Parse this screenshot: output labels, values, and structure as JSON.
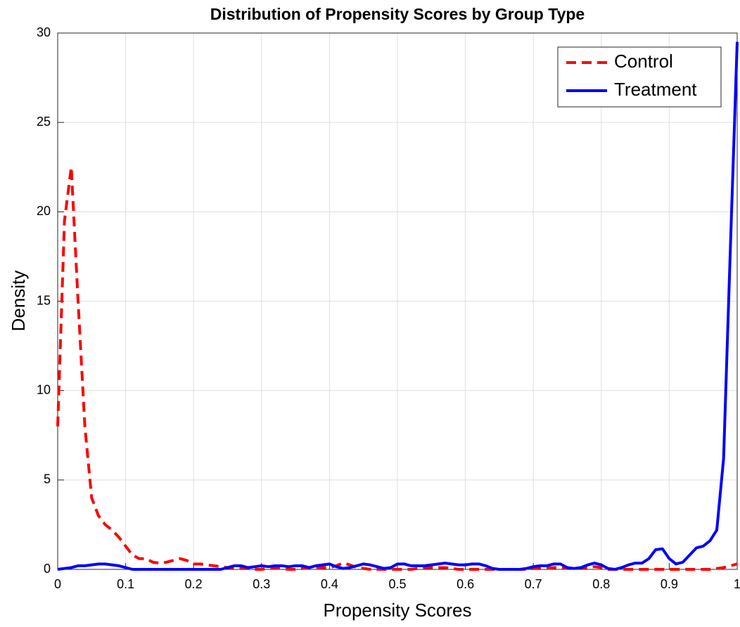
{
  "chart_data": {
    "type": "line",
    "title": "Distribution of Propensity Scores by Group Type",
    "xlabel": "Propensity Scores",
    "ylabel": "Density",
    "x": [
      0,
      0.01,
      0.02,
      0.03,
      0.04,
      0.05,
      0.06,
      0.07,
      0.08,
      0.09,
      0.1,
      0.11,
      0.12,
      0.13,
      0.14,
      0.15,
      0.16,
      0.17,
      0.18,
      0.19,
      0.2,
      0.21,
      0.22,
      0.23,
      0.24,
      0.25,
      0.26,
      0.27,
      0.28,
      0.29,
      0.3,
      0.31,
      0.32,
      0.33,
      0.34,
      0.35,
      0.36,
      0.37,
      0.38,
      0.39,
      0.4,
      0.41,
      0.42,
      0.43,
      0.44,
      0.45,
      0.46,
      0.47,
      0.48,
      0.49,
      0.5,
      0.51,
      0.52,
      0.53,
      0.54,
      0.55,
      0.56,
      0.57,
      0.58,
      0.59,
      0.6,
      0.61,
      0.62,
      0.63,
      0.64,
      0.65,
      0.66,
      0.67,
      0.68,
      0.69,
      0.7,
      0.71,
      0.72,
      0.73,
      0.74,
      0.75,
      0.76,
      0.77,
      0.78,
      0.79,
      0.8,
      0.81,
      0.82,
      0.83,
      0.84,
      0.85,
      0.86,
      0.87,
      0.88,
      0.89,
      0.9,
      0.91,
      0.92,
      0.93,
      0.94,
      0.95,
      0.96,
      0.97,
      0.98,
      0.99,
      1
    ],
    "series": [
      {
        "name": "Control",
        "color": "#ff0000",
        "dash": true,
        "values": [
          8,
          19.5,
          22.5,
          15,
          8,
          4,
          3,
          2.5,
          2.2,
          1.8,
          1.3,
          0.8,
          0.6,
          0.6,
          0.4,
          0.35,
          0.4,
          0.5,
          0.6,
          0.5,
          0.3,
          0.3,
          0.25,
          0.2,
          0.15,
          0.1,
          0.1,
          0.05,
          0.05,
          0,
          0,
          0.05,
          0.1,
          0.05,
          0,
          0,
          0.05,
          0.1,
          0.05,
          0.1,
          0.1,
          0.2,
          0.35,
          0.25,
          0.1,
          0.05,
          0,
          0,
          0,
          0,
          0,
          0,
          0,
          0.05,
          0.1,
          0.1,
          0.1,
          0.1,
          0.05,
          0,
          0,
          0,
          0,
          0,
          0,
          0,
          0,
          0,
          0,
          0,
          0.05,
          0.05,
          0.05,
          0.1,
          0.1,
          0.05,
          0.05,
          0.1,
          0.1,
          0.15,
          0.1,
          0,
          0,
          0,
          0,
          0,
          0,
          0,
          0,
          0,
          0,
          0,
          0,
          0,
          0,
          0,
          0,
          0.05,
          0.1,
          0.2,
          0.3
        ]
      },
      {
        "name": "Treatment",
        "color": "#0000ff",
        "dash": false,
        "values": [
          0,
          0.05,
          0.1,
          0.2,
          0.2,
          0.25,
          0.3,
          0.3,
          0.25,
          0.2,
          0.1,
          0,
          0,
          0,
          0,
          0,
          0,
          0,
          0,
          0,
          0,
          0,
          0,
          0,
          0,
          0.1,
          0.2,
          0.2,
          0.1,
          0.15,
          0.2,
          0.15,
          0.2,
          0.2,
          0.15,
          0.2,
          0.2,
          0.1,
          0.2,
          0.25,
          0.3,
          0.15,
          0.05,
          0.1,
          0.2,
          0.3,
          0.25,
          0.15,
          0.05,
          0.1,
          0.3,
          0.3,
          0.2,
          0.2,
          0.2,
          0.25,
          0.3,
          0.35,
          0.3,
          0.25,
          0.25,
          0.3,
          0.3,
          0.2,
          0.05,
          0,
          0,
          0,
          0,
          0.05,
          0.15,
          0.2,
          0.2,
          0.3,
          0.3,
          0.1,
          0.05,
          0.1,
          0.25,
          0.35,
          0.25,
          0.05,
          0,
          0.1,
          0.25,
          0.35,
          0.35,
          0.6,
          1.1,
          1.15,
          0.6,
          0.3,
          0.4,
          0.8,
          1.2,
          1.3,
          1.6,
          2.2,
          6.2,
          18,
          29.5
        ]
      }
    ],
    "xlim": [
      0,
      1
    ],
    "xticks": [
      0,
      0.1,
      0.2,
      0.3,
      0.4,
      0.5,
      0.6,
      0.7,
      0.8,
      0.9,
      1
    ],
    "ylim": [
      0,
      30
    ],
    "yticks": [
      0,
      5,
      10,
      15,
      20,
      25,
      30
    ],
    "grid": true,
    "legend": "top-right"
  }
}
